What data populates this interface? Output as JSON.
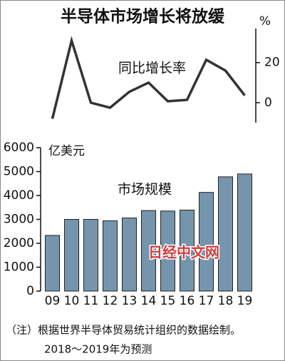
{
  "title": "半导体市场增长将放缓",
  "chart_data": [
    {
      "type": "line",
      "label": "同比增长率",
      "unit": "%",
      "values": [
        -8,
        31,
        0,
        -2.5,
        5.4,
        10,
        0.7,
        1.4,
        21.4,
        16,
        3.6
      ],
      "color": "#333333",
      "ylim": [
        -10,
        37
      ],
      "yticks": [
        0,
        20
      ],
      "axis_side": "right"
    },
    {
      "type": "bar",
      "label": "市场规模",
      "unit": "亿美元",
      "categories": [
        "09",
        "10",
        "11",
        "12",
        "13",
        "14",
        "15",
        "16",
        "17",
        "18",
        "19"
      ],
      "values": [
        2330,
        3000,
        3000,
        2940,
        3060,
        3370,
        3350,
        3390,
        4130,
        4780,
        4900
      ],
      "color": "#7595ad",
      "ylim": [
        0,
        6000
      ],
      "yticks": [
        0,
        1000,
        2000,
        3000,
        4000,
        5000,
        6000
      ]
    }
  ],
  "watermark": "日经中文网",
  "notes": [
    "（注）根据世界半导体贸易统计组织的数据绘制。",
    "2018～2019年为预测"
  ]
}
